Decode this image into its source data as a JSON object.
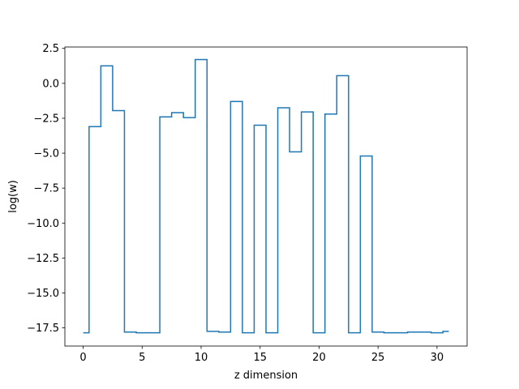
{
  "chart_data": {
    "type": "line",
    "drawstyle": "steps-mid",
    "title": "",
    "xlabel": "z dimension",
    "ylabel": "log(w)",
    "xlim": [
      -1.55,
      32.55
    ],
    "ylim": [
      -18.8,
      2.6
    ],
    "xticks": [
      0,
      5,
      10,
      15,
      20,
      25,
      30
    ],
    "xtick_labels": [
      "0",
      "5",
      "10",
      "15",
      "20",
      "25",
      "30"
    ],
    "yticks": [
      2.5,
      0.0,
      -2.5,
      -5.0,
      -7.5,
      -10.0,
      -12.5,
      -15.0,
      -17.5
    ],
    "ytick_labels": [
      "2.5",
      "0.0",
      "−2.5",
      "−5.0",
      "−7.5",
      "−10.0",
      "−12.5",
      "−15.0",
      "−17.5"
    ],
    "grid": false,
    "legend": "none",
    "series": [
      {
        "color": "#1f77b4",
        "x": [
          0,
          1,
          2,
          3,
          4,
          5,
          6,
          7,
          8,
          9,
          10,
          11,
          12,
          13,
          14,
          15,
          16,
          17,
          18,
          19,
          20,
          21,
          22,
          23,
          24,
          25,
          26,
          27,
          28,
          29,
          30,
          31
        ],
        "values": [
          -17.85,
          -3.1,
          1.25,
          -1.95,
          -17.8,
          -17.85,
          -17.85,
          -2.4,
          -2.1,
          -2.45,
          1.7,
          -17.75,
          -17.8,
          -1.3,
          -17.85,
          -3.0,
          -17.85,
          -1.75,
          -4.9,
          -2.05,
          -17.85,
          -2.2,
          0.55,
          -17.85,
          -5.2,
          -17.8,
          -17.85,
          -17.85,
          -17.8,
          -17.8,
          -17.85,
          -17.75
        ]
      }
    ]
  }
}
